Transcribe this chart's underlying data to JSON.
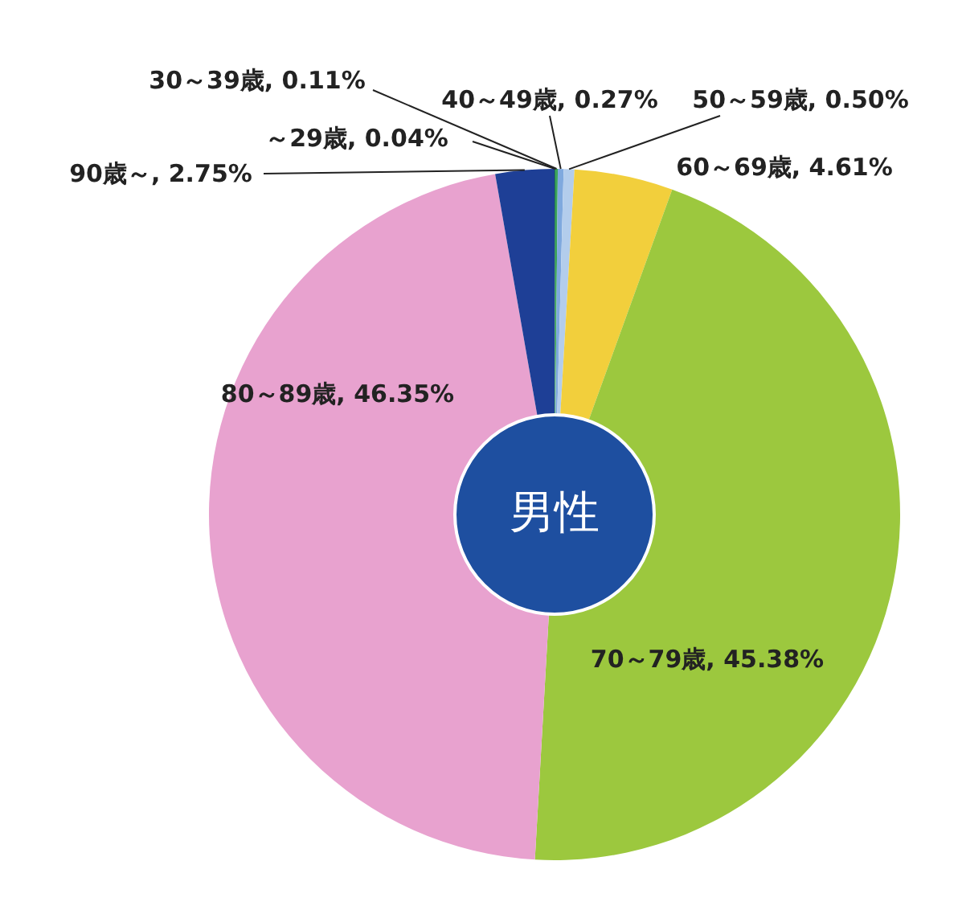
{
  "chart_data": {
    "type": "donut",
    "title": "男性",
    "categories": [
      "～29歳",
      "30～39歳",
      "40～49歳",
      "50～59歳",
      "60～69歳",
      "70～79歳",
      "80～89歳",
      "90歳～"
    ],
    "values": [
      0.04,
      0.11,
      0.27,
      0.5,
      4.61,
      45.38,
      46.35,
      2.75
    ],
    "colors": [
      "#1f7a45",
      "#3aa35a",
      "#7fa9de",
      "#b3cdec",
      "#f2cf3c",
      "#9cc83e",
      "#e8a2cf",
      "#1e3f96"
    ],
    "value_labels": [
      "0.04%",
      "0.11%",
      "0.27%",
      "0.50%",
      "4.61%",
      "45.38%",
      "46.35%",
      "2.75%"
    ]
  }
}
